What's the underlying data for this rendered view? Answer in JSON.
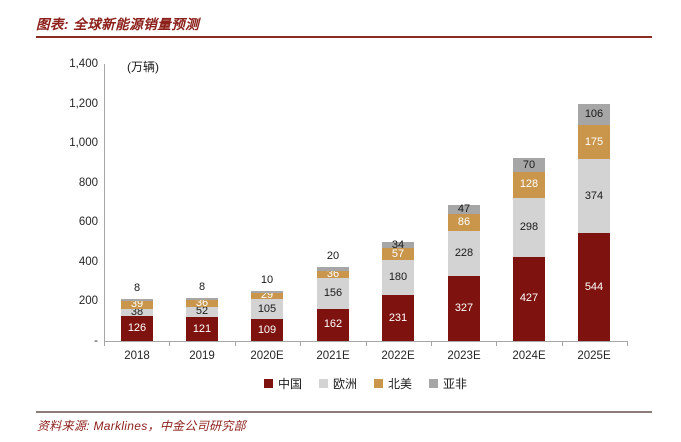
{
  "figure": {
    "title": "图表:  全球新能源销量预测",
    "unit_label": "(万辆)",
    "source": "资料来源: Marklines，中金公司研究部",
    "accent_color": "#8C1F1A"
  },
  "chart_data": {
    "type": "bar",
    "stacked": true,
    "title": "全球新能源销量预测",
    "ylabel": "万辆",
    "xlabel": "",
    "categories": [
      "2018",
      "2019",
      "2020E",
      "2021E",
      "2022E",
      "2023E",
      "2024E",
      "2025E"
    ],
    "series": [
      {
        "name": "中国",
        "color": "#7d120e",
        "label_color": "#ffffff",
        "values": [
          126,
          121,
          109,
          162,
          231,
          327,
          427,
          544
        ]
      },
      {
        "name": "欧洲",
        "color": "#d3d3d3",
        "label_color": "#1a1a1a",
        "values": [
          38,
          52,
          105,
          156,
          180,
          228,
          298,
          374
        ]
      },
      {
        "name": "北美",
        "color": "#c9964b",
        "label_color": "#ffffff",
        "values": [
          39,
          36,
          29,
          36,
          57,
          86,
          128,
          175
        ]
      },
      {
        "name": "亚非",
        "color": "#a6a6a6",
        "label_color": "#1a1a1a",
        "values": [
          8,
          8,
          10,
          20,
          34,
          47,
          70,
          106
        ]
      }
    ],
    "totals": [
      211,
      217,
      253,
      374,
      502,
      688,
      923,
      1199
    ],
    "ylim": [
      0,
      1400
    ],
    "yticks": [
      {
        "label": "1,400",
        "value": 1400
      },
      {
        "label": "1,200",
        "value": 1200
      },
      {
        "label": "1,000",
        "value": 1000
      },
      {
        "label": "800",
        "value": 800
      },
      {
        "label": "600",
        "value": 600
      },
      {
        "label": "400",
        "value": 400
      },
      {
        "label": "200",
        "value": 200
      },
      {
        "label": "-",
        "value": 0
      }
    ],
    "grid": false,
    "data_labels": true,
    "legend_position": "bottom"
  }
}
